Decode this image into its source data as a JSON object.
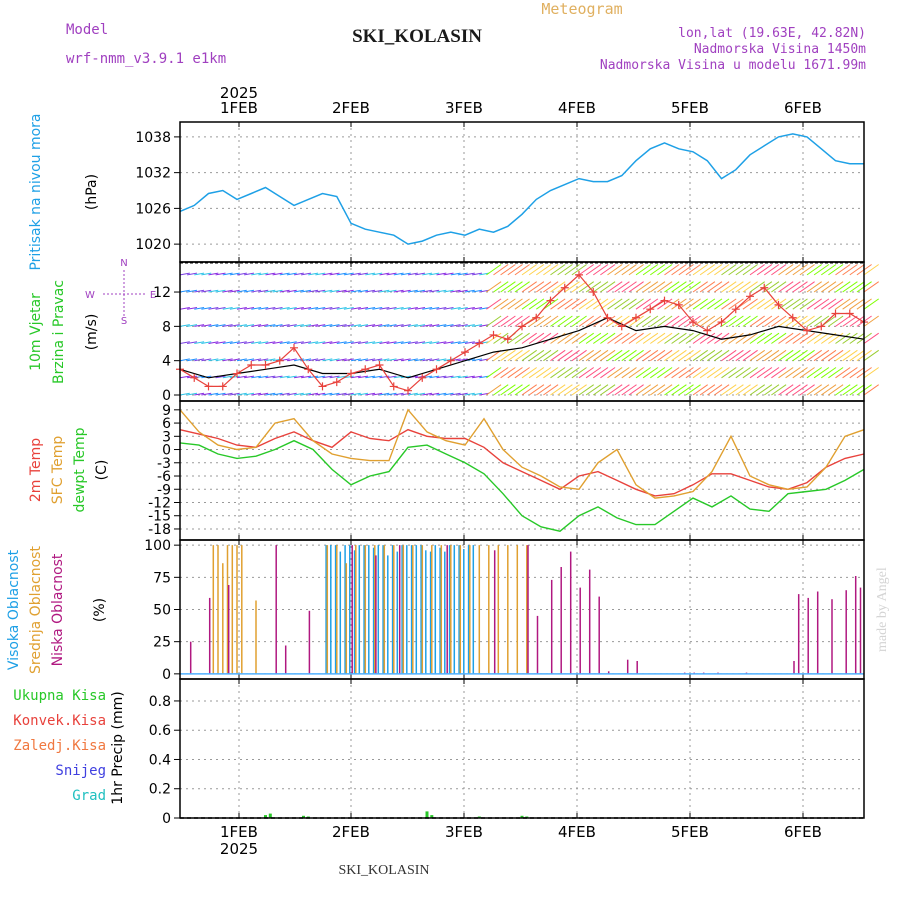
{
  "header": {
    "title": "SKI_KOLASIN",
    "meteogram_label": "Meteogram",
    "model_label": "Model",
    "model_name": "wrf-nmm_v3.9.1 e1km",
    "lonlat": "lon,lat (19.63E, 42.82N)",
    "altitude": "Nadmorska Visina 1450m",
    "model_altitude": "Nadmorska Visina u modelu 1671.99m",
    "year_top": "2025",
    "year_bottom": "2025",
    "footer": "SKI_KOLASIN",
    "credit": "made by Angel"
  },
  "colors": {
    "pressure": "#1ea0e6",
    "temp2m": "#e8423c",
    "sfc": "#e0a030",
    "dewpt": "#28c828",
    "high_cloud": "#1ea0e6",
    "mid_cloud": "#e0a030",
    "low_cloud": "#b01880",
    "title": "#1a1a1a",
    "meta": "#a040c0"
  },
  "chart_data": [
    {
      "type": "line",
      "title": "",
      "ylabel_parts": [
        "Pritisak na nivou mora",
        "(hPa)"
      ],
      "yticks": [
        1020,
        1026,
        1032,
        1038
      ],
      "ylim": [
        1017,
        1040.5
      ],
      "days": [
        "1FEB",
        "2FEB",
        "3FEB",
        "4FEB",
        "5FEB",
        "6FEB"
      ],
      "x_hours_from": 0,
      "x_hours_to": 144,
      "grid": true,
      "series": [
        {
          "x": [
            0,
            3,
            6,
            9,
            12,
            15,
            18,
            21,
            24,
            27,
            30,
            33,
            36,
            39,
            42,
            45,
            48,
            51,
            54,
            57,
            60,
            63,
            66,
            69,
            72,
            75,
            78,
            81,
            84,
            87,
            90,
            93,
            96,
            99,
            102,
            105,
            108,
            111,
            114,
            117,
            120,
            123,
            126,
            129,
            132,
            135,
            138,
            141,
            144
          ],
          "y": [
            1025.5,
            1026.5,
            1028.5,
            1029,
            1027.5,
            1028.5,
            1029.5,
            1028,
            1026.5,
            1027.5,
            1028.5,
            1028,
            1023.5,
            1022.5,
            1022,
            1021.5,
            1020,
            1020.5,
            1021.5,
            1022,
            1021.5,
            1022.5,
            1022,
            1023,
            1025,
            1027.5,
            1029,
            1030,
            1031,
            1030.5,
            1030.5,
            1031.5,
            1034,
            1036,
            1037,
            1036,
            1035.5,
            1034,
            1031,
            1032.5,
            1035,
            1036.5,
            1038,
            1038.5,
            1038,
            1036,
            1034,
            1033.5,
            1033.5
          ]
        }
      ]
    },
    {
      "type": "line",
      "title": "",
      "ylabel_parts": [
        "10m Vjetar",
        "Brzina i Pravac",
        "(m/s)"
      ],
      "yticks": [
        0,
        4,
        8,
        12
      ],
      "ylim": [
        -0.7,
        15.5
      ],
      "compass": {
        "n": "N",
        "e": "E",
        "s": "S",
        "w": "W"
      },
      "days": [
        "1FEB",
        "2FEB",
        "3FEB",
        "4FEB",
        "5FEB",
        "6FEB"
      ],
      "barb_levels": [
        0,
        2,
        4,
        6,
        8,
        10,
        12,
        14
      ],
      "series": [
        {
          "name": "wind_speed",
          "x": [
            0,
            3,
            6,
            9,
            12,
            15,
            18,
            21,
            24,
            27,
            30,
            33,
            36,
            39,
            42,
            45,
            48,
            51,
            54,
            57,
            60,
            63,
            66,
            69,
            72,
            75,
            78,
            81,
            84,
            87,
            90,
            93,
            96,
            99,
            102,
            105,
            108,
            111,
            114,
            117,
            120,
            123,
            126,
            129,
            132,
            135,
            138,
            141,
            144
          ],
          "y": [
            3,
            2,
            1,
            1,
            2.5,
            3.5,
            3.5,
            4,
            5.5,
            3,
            1,
            1.5,
            2.5,
            3,
            3.5,
            1,
            0.5,
            2,
            3,
            4,
            5,
            6,
            7,
            6.5,
            8,
            9,
            11,
            12.5,
            14,
            12,
            9,
            8,
            9,
            10,
            11,
            10.5,
            8.5,
            7.5,
            8.5,
            10,
            11.5,
            12.5,
            10.5,
            9,
            7.5,
            8,
            9.5,
            9.5,
            8.5
          ]
        },
        {
          "name": "wind_mean",
          "x": [
            0,
            6,
            12,
            18,
            24,
            30,
            36,
            42,
            48,
            54,
            60,
            66,
            72,
            78,
            84,
            90,
            96,
            102,
            108,
            114,
            120,
            126,
            132,
            138,
            144
          ],
          "y": [
            3,
            2,
            2.5,
            3,
            3.5,
            2.5,
            2.5,
            3,
            2,
            3,
            4,
            5,
            5.5,
            6.5,
            7.5,
            9,
            7.5,
            8,
            7.5,
            6.5,
            7,
            8,
            7.5,
            7,
            6.5
          ]
        }
      ]
    },
    {
      "type": "line",
      "title": "",
      "ylabel_parts": [
        "2m Temp",
        "SFC Temp",
        "dewpt Temp",
        "(C)"
      ],
      "yticks": [
        9,
        6,
        3,
        0,
        -3,
        -6,
        -9,
        -12,
        -15,
        -18
      ],
      "ylim": [
        -20.5,
        11
      ],
      "days": [
        "1FEB",
        "2FEB",
        "3FEB",
        "4FEB",
        "5FEB",
        "6FEB"
      ],
      "series": [
        {
          "name": "2m Temp",
          "x": [
            0,
            4,
            8,
            12,
            16,
            20,
            24,
            28,
            32,
            36,
            40,
            44,
            48,
            52,
            56,
            60,
            64,
            68,
            72,
            76,
            80,
            84,
            88,
            92,
            96,
            100,
            104,
            108,
            112,
            116,
            120,
            124,
            128,
            132,
            136,
            140,
            144
          ],
          "y": [
            4.5,
            3.5,
            2.5,
            1,
            0.5,
            2.5,
            4,
            2,
            0.5,
            4,
            2.5,
            2,
            4.5,
            3,
            2.5,
            2.5,
            0.5,
            -3,
            -5,
            -7,
            -9,
            -6,
            -5,
            -7,
            -9,
            -10.5,
            -10,
            -8,
            -5.5,
            -5.5,
            -7,
            -8.5,
            -9,
            -7.5,
            -4,
            -2,
            -1
          ]
        },
        {
          "name": "SFC Temp",
          "x": [
            0,
            4,
            8,
            12,
            16,
            20,
            24,
            28,
            32,
            36,
            40,
            44,
            48,
            52,
            56,
            60,
            64,
            68,
            72,
            76,
            80,
            84,
            88,
            92,
            96,
            100,
            104,
            108,
            112,
            116,
            120,
            124,
            128,
            132,
            136,
            140,
            144
          ],
          "y": [
            9,
            4,
            1,
            0,
            0.5,
            6,
            7,
            2,
            -1,
            -2,
            -2.5,
            -2.5,
            9,
            4,
            2,
            1,
            7,
            0,
            -4,
            -6,
            -8.5,
            -9,
            -3,
            0,
            -8,
            -11,
            -10.5,
            -9.5,
            -5,
            3,
            -6,
            -8,
            -9,
            -8.5,
            -4,
            3,
            4.5
          ]
        },
        {
          "name": "dewpt Temp",
          "x": [
            0,
            4,
            8,
            12,
            16,
            20,
            24,
            28,
            32,
            36,
            40,
            44,
            48,
            52,
            56,
            60,
            64,
            68,
            72,
            76,
            80,
            84,
            88,
            92,
            96,
            100,
            104,
            108,
            112,
            116,
            120,
            124,
            128,
            132,
            136,
            140,
            144
          ],
          "y": [
            1.5,
            1,
            -1,
            -2,
            -1.5,
            0,
            2,
            0,
            -4.5,
            -8,
            -6,
            -5,
            0.5,
            1,
            -1,
            -3,
            -5.5,
            -10,
            -15,
            -17.5,
            -18.5,
            -15,
            -13,
            -15.5,
            -17,
            -17,
            -14,
            -11,
            -13,
            -10.5,
            -13.5,
            -14,
            -10,
            -9.5,
            -9,
            -7,
            -4.5
          ]
        }
      ]
    },
    {
      "type": "bar",
      "title": "",
      "ylabel_parts": [
        "Visoka Oblacnost",
        "Srednja Oblacnost",
        "Niska Oblacnost",
        "(%)"
      ],
      "yticks": [
        0,
        25,
        50,
        75,
        100
      ],
      "ylim": [
        -4,
        104
      ],
      "days": [
        "1FEB",
        "2FEB",
        "3FEB",
        "4FEB",
        "5FEB",
        "6FEB"
      ],
      "series": [
        {
          "name": "Visoka Oblacnost",
          "x": [
            31,
            32,
            33,
            34,
            35,
            36,
            37,
            38,
            39,
            40,
            41,
            42,
            43,
            44,
            45,
            46,
            47,
            48,
            49,
            50,
            51,
            52,
            53,
            54,
            55,
            56,
            57,
            58,
            59,
            60,
            61,
            62
          ],
          "y": [
            100,
            100,
            100,
            95,
            100,
            100,
            96,
            100,
            100,
            100,
            98,
            100,
            100,
            92,
            100,
            95,
            100,
            100,
            100,
            100,
            100,
            96,
            95,
            100,
            98,
            95,
            100,
            100,
            100,
            97,
            100,
            100
          ]
        },
        {
          "name": "Srednja Oblacnost",
          "x": [
            7,
            8,
            9,
            10,
            11,
            12,
            13,
            16,
            31,
            33,
            35,
            37,
            39,
            41,
            43,
            45,
            47,
            49,
            51,
            53,
            55,
            57,
            59,
            61,
            63,
            65,
            67,
            69,
            71,
            73
          ],
          "y": [
            100,
            100,
            86,
            100,
            100,
            100,
            100,
            57,
            100,
            100,
            86,
            100,
            100,
            100,
            100,
            100,
            100,
            100,
            100,
            100,
            100,
            100,
            100,
            100,
            100,
            100,
            100,
            100,
            100,
            100
          ]
        },
        {
          "name": "Niska Oblacnost",
          "x": [
            2,
            6,
            10,
            20,
            22,
            27,
            36,
            41,
            46,
            56,
            66,
            73,
            75,
            78,
            80,
            82,
            84,
            86,
            88,
            90,
            94,
            96,
            106,
            108,
            110,
            113,
            119,
            129,
            130,
            132,
            134,
            137,
            140,
            142,
            143
          ],
          "y": [
            25,
            59,
            69,
            100,
            22,
            49,
            100,
            92,
            100,
            100,
            96,
            100,
            45,
            73,
            83,
            95,
            67,
            81,
            60,
            2,
            11,
            10,
            1,
            1,
            1,
            1,
            1,
            10,
            62,
            59,
            64,
            58,
            65,
            76,
            67
          ]
        }
      ]
    },
    {
      "type": "bar",
      "title": "",
      "ylabel_parts": [
        "1hr Precip (mm)"
      ],
      "legend": [
        "Ukupna Kisa",
        "Konvek.Kisa",
        "Zaledj.Kisa",
        "Snijeg",
        "Grad"
      ],
      "yticks": [
        0,
        0.2,
        0.4,
        0.6,
        0.8
      ],
      "ylim": [
        0,
        0.95
      ],
      "days": [
        "1FEB",
        "2FEB",
        "3FEB",
        "4FEB",
        "5FEB",
        "6FEB"
      ],
      "series": [
        {
          "name": "Ukupna Kisa",
          "x": [
            18,
            19,
            26,
            27,
            52,
            53,
            63,
            72,
            73
          ],
          "y": [
            0.02,
            0.03,
            0.015,
            0.01,
            0.045,
            0.02,
            0.01,
            0.015,
            0.01
          ]
        }
      ]
    }
  ]
}
